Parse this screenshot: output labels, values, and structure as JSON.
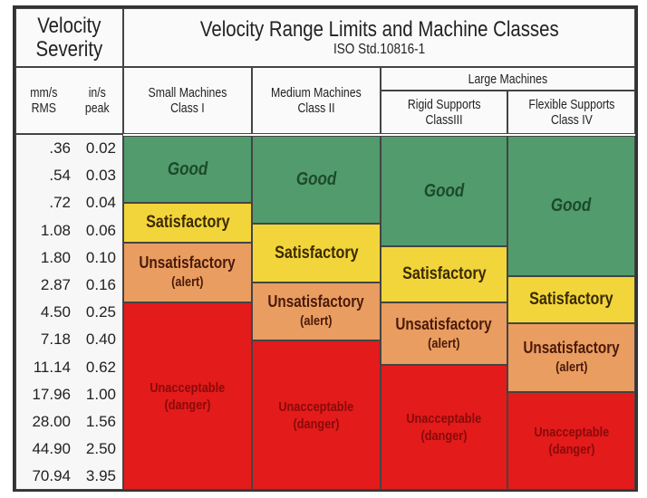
{
  "corner_title": {
    "line1": "Velocity",
    "line2": "Severity"
  },
  "title": "Velocity Range Limits and Machine Classes",
  "subtitle": "ISO Std.10816-1",
  "unit_headers": {
    "rms": "mm/s RMS",
    "rms_l1": "mm/s",
    "rms_l2": "RMS",
    "peak_l1": "in/s",
    "peak_l2": "peak"
  },
  "group_header": "Large Machines",
  "classes": [
    {
      "line1": "Small Machines",
      "line2": "Class I"
    },
    {
      "line1": "Medium Machines",
      "line2": "Class II"
    },
    {
      "line1": "Rigid Supports",
      "line2": "ClassIII"
    },
    {
      "line1": "Flexible Supports",
      "line2": "Class IV"
    }
  ],
  "rows": [
    {
      "mm_s_rms": ".36",
      "in_s_peak": "0.02"
    },
    {
      "mm_s_rms": ".54",
      "in_s_peak": "0.03"
    },
    {
      "mm_s_rms": ".72",
      "in_s_peak": "0.04"
    },
    {
      "mm_s_rms": "1.08",
      "in_s_peak": "0.06"
    },
    {
      "mm_s_rms": "1.80",
      "in_s_peak": "0.10"
    },
    {
      "mm_s_rms": "2.87",
      "in_s_peak": "0.16"
    },
    {
      "mm_s_rms": "4.50",
      "in_s_peak": "0.25"
    },
    {
      "mm_s_rms": "7.18",
      "in_s_peak": "0.40"
    },
    {
      "mm_s_rms": "11.14",
      "in_s_peak": "0.62"
    },
    {
      "mm_s_rms": "17.96",
      "in_s_peak": "1.00"
    },
    {
      "mm_s_rms": "28.00",
      "in_s_peak": "1.56"
    },
    {
      "mm_s_rms": "44.90",
      "in_s_peak": "2.50"
    },
    {
      "mm_s_rms": "70.94",
      "in_s_peak": "3.95"
    }
  ],
  "zones": {
    "good": "Good",
    "satisfactory": "Satisfactory",
    "unsatisfactory": "Unsatisfactory",
    "unsatisfactory_note": "(alert)",
    "unacceptable": "Unacceptable",
    "unacceptable_note": "(danger)"
  },
  "colors": {
    "good": "#519b6c",
    "satisfactory": "#f2d53a",
    "unsatisfactory": "#e99d60",
    "unacceptable": "#e31b1b"
  }
}
